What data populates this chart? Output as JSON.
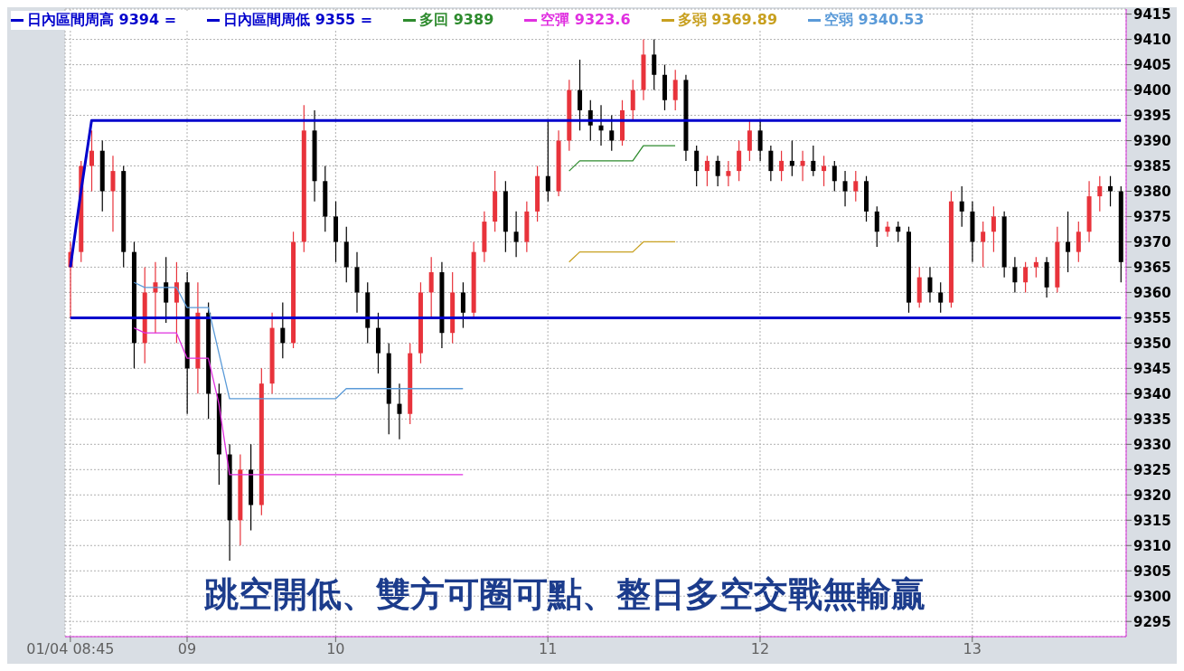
{
  "chart_data": {
    "type": "candlestick",
    "categories": [
      "01/04 08:45",
      null,
      null,
      null,
      null,
      null,
      null,
      null,
      null,
      null,
      null,
      "09",
      null,
      null,
      null,
      null,
      null,
      null,
      null,
      null,
      null,
      null,
      null,
      null,
      null,
      "10",
      null,
      null,
      null,
      null,
      null,
      null,
      null,
      null,
      null,
      null,
      null,
      null,
      null,
      null,
      null,
      null,
      null,
      null,
      null,
      "11",
      null,
      null,
      null,
      null,
      null,
      null,
      null,
      null,
      null,
      null,
      null,
      null,
      null,
      null,
      null,
      null,
      null,
      null,
      null,
      "12",
      null,
      null,
      null,
      null,
      null,
      null,
      null,
      null,
      null,
      null,
      null,
      null,
      null,
      null,
      null,
      null,
      null,
      null,
      null,
      "13",
      null,
      null,
      null,
      null,
      null,
      null,
      null,
      null,
      null,
      null,
      null,
      null,
      null,
      null
    ],
    "ohlc": [
      [
        9365,
        9370,
        9355,
        9368
      ],
      [
        9368,
        9386,
        9366,
        9385
      ],
      [
        9385,
        9392,
        9380,
        9388
      ],
      [
        9388,
        9390,
        9376,
        9380
      ],
      [
        9380,
        9387,
        9372,
        9384
      ],
      [
        9384,
        9385,
        9365,
        9368
      ],
      [
        9368,
        9370,
        9345,
        9350
      ],
      [
        9350,
        9365,
        9346,
        9360
      ],
      [
        9360,
        9366,
        9352,
        9362
      ],
      [
        9362,
        9367,
        9354,
        9358
      ],
      [
        9358,
        9366,
        9350,
        9362
      ],
      [
        9362,
        9364,
        9336,
        9345
      ],
      [
        9345,
        9362,
        9340,
        9356
      ],
      [
        9356,
        9358,
        9335,
        9340
      ],
      [
        9340,
        9342,
        9322,
        9328
      ],
      [
        9328,
        9330,
        9307,
        9315
      ],
      [
        9315,
        9328,
        9310,
        9325
      ],
      [
        9325,
        9330,
        9313,
        9318
      ],
      [
        9318,
        9345,
        9316,
        9342
      ],
      [
        9342,
        9356,
        9340,
        9353
      ],
      [
        9353,
        9358,
        9347,
        9350
      ],
      [
        9350,
        9372,
        9349,
        9370
      ],
      [
        9370,
        9397,
        9368,
        9392
      ],
      [
        9392,
        9396,
        9378,
        9382
      ],
      [
        9382,
        9385,
        9372,
        9375
      ],
      [
        9375,
        9378,
        9366,
        9370
      ],
      [
        9370,
        9373,
        9362,
        9365
      ],
      [
        9365,
        9368,
        9356,
        9360
      ],
      [
        9360,
        9362,
        9350,
        9353
      ],
      [
        9353,
        9356,
        9344,
        9348
      ],
      [
        9348,
        9350,
        9332,
        9338
      ],
      [
        9338,
        9342,
        9331,
        9336
      ],
      [
        9336,
        9350,
        9334,
        9348
      ],
      [
        9348,
        9362,
        9346,
        9360
      ],
      [
        9360,
        9367,
        9355,
        9364
      ],
      [
        9364,
        9366,
        9349,
        9352
      ],
      [
        9352,
        9364,
        9350,
        9360
      ],
      [
        9360,
        9362,
        9353,
        9356
      ],
      [
        9356,
        9370,
        9355,
        9368
      ],
      [
        9368,
        9376,
        9366,
        9374
      ],
      [
        9374,
        9384,
        9372,
        9380
      ],
      [
        9380,
        9382,
        9368,
        9372
      ],
      [
        9372,
        9376,
        9367,
        9370
      ],
      [
        9370,
        9378,
        9368,
        9376
      ],
      [
        9376,
        9385,
        9374,
        9383
      ],
      [
        9383,
        9394,
        9378,
        9380
      ],
      [
        9380,
        9392,
        9379,
        9390
      ],
      [
        9390,
        9402,
        9388,
        9400
      ],
      [
        9400,
        9406,
        9392,
        9396
      ],
      [
        9396,
        9398,
        9390,
        9393
      ],
      [
        9393,
        9397,
        9389,
        9392
      ],
      [
        9392,
        9395,
        9388,
        9390
      ],
      [
        9390,
        9398,
        9389,
        9396
      ],
      [
        9396,
        9402,
        9394,
        9400
      ],
      [
        9400,
        9410,
        9398,
        9407
      ],
      [
        9407,
        9410,
        9400,
        9403
      ],
      [
        9403,
        9405,
        9396,
        9398
      ],
      [
        9398,
        9404,
        9396,
        9402
      ],
      [
        9402,
        9403,
        9386,
        9388
      ],
      [
        9388,
        9389,
        9381,
        9384
      ],
      [
        9384,
        9387,
        9381,
        9386
      ],
      [
        9386,
        9387,
        9381,
        9383
      ],
      [
        9383,
        9386,
        9381,
        9384
      ],
      [
        9384,
        9390,
        9382,
        9388
      ],
      [
        9388,
        9394,
        9386,
        9392
      ],
      [
        9392,
        9394,
        9386,
        9388
      ],
      [
        9388,
        9389,
        9382,
        9384
      ],
      [
        9384,
        9388,
        9382,
        9386
      ],
      [
        9386,
        9390,
        9383,
        9385
      ],
      [
        9385,
        9388,
        9382,
        9386
      ],
      [
        9386,
        9389,
        9383,
        9384
      ],
      [
        9384,
        9387,
        9381,
        9385
      ],
      [
        9385,
        9386,
        9380,
        9382
      ],
      [
        9382,
        9384,
        9377,
        9380
      ],
      [
        9380,
        9384,
        9378,
        9382
      ],
      [
        9382,
        9383,
        9374,
        9376
      ],
      [
        9376,
        9377,
        9369,
        9372
      ],
      [
        9372,
        9374,
        9371,
        9373
      ],
      [
        9373,
        9374,
        9370,
        9372
      ],
      [
        9372,
        9373,
        9356,
        9358
      ],
      [
        9358,
        9365,
        9357,
        9363
      ],
      [
        9363,
        9365,
        9358,
        9360
      ],
      [
        9360,
        9362,
        9356,
        9358
      ],
      [
        9358,
        9380,
        9357,
        9378
      ],
      [
        9378,
        9381,
        9373,
        9376
      ],
      [
        9376,
        9378,
        9366,
        9370
      ],
      [
        9370,
        9374,
        9365,
        9372
      ],
      [
        9372,
        9377,
        9368,
        9375
      ],
      [
        9375,
        9376,
        9363,
        9365
      ],
      [
        9365,
        9367,
        9360,
        9362
      ],
      [
        9362,
        9366,
        9360,
        9365
      ],
      [
        9365,
        9367,
        9363,
        9366
      ],
      [
        9366,
        9367,
        9359,
        9361
      ],
      [
        9361,
        9373,
        9360,
        9370
      ],
      [
        9370,
        9376,
        9364,
        9368
      ],
      [
        9368,
        9374,
        9366,
        9372
      ],
      [
        9372,
        9382,
        9370,
        9379
      ],
      [
        9379,
        9383,
        9376,
        9381
      ],
      [
        9381,
        9383,
        9377,
        9380
      ],
      [
        9380,
        9381,
        9362,
        9366
      ]
    ],
    "colors": [
      "#e8333b",
      "#e8333b",
      "#e8333b",
      "#000000",
      "#e8333b",
      "#000000",
      "#000000",
      "#e8333b",
      "#e8333b",
      "#000000",
      "#e8333b",
      "#000000",
      "#e8333b",
      "#000000",
      "#000000",
      "#000000",
      "#e8333b",
      "#000000",
      "#e8333b",
      "#e8333b",
      "#000000",
      "#e8333b",
      "#e8333b",
      "#000000",
      "#000000",
      "#000000",
      "#000000",
      "#000000",
      "#000000",
      "#000000",
      "#000000",
      "#000000",
      "#e8333b",
      "#e8333b",
      "#e8333b",
      "#000000",
      "#e8333b",
      "#000000",
      "#e8333b",
      "#e8333b",
      "#e8333b",
      "#000000",
      "#000000",
      "#e8333b",
      "#e8333b",
      "#000000",
      "#e8333b",
      "#e8333b",
      "#000000",
      "#000000",
      "#000000",
      "#000000",
      "#e8333b",
      "#e8333b",
      "#e8333b",
      "#000000",
      "#000000",
      "#e8333b",
      "#000000",
      "#000000",
      "#e8333b",
      "#000000",
      "#e8333b",
      "#e8333b",
      "#e8333b",
      "#000000",
      "#000000",
      "#e8333b",
      "#000000",
      "#e8333b",
      "#000000",
      "#e8333b",
      "#000000",
      "#000000",
      "#e8333b",
      "#000000",
      "#000000",
      "#e8333b",
      "#000000",
      "#000000",
      "#e8333b",
      "#000000",
      "#000000",
      "#e8333b",
      "#000000",
      "#000000",
      "#e8333b",
      "#e8333b",
      "#000000",
      "#000000",
      "#e8333b",
      "#e8333b",
      "#000000",
      "#e8333b",
      "#000000",
      "#e8333b",
      "#e8333b",
      "#e8333b",
      "#000000",
      "#000000"
    ],
    "series": [
      {
        "type": "line",
        "name": "日內區間周高 9394 =",
        "color": "#0000cc",
        "values": [
          9365,
          9380,
          9394,
          9394,
          9394,
          9394,
          9394,
          9394,
          9394,
          9394,
          9394,
          9394,
          9394,
          9394,
          9394,
          9394,
          9394,
          9394,
          9394,
          9394,
          9394,
          9394,
          9394,
          9394,
          9394,
          9394,
          9394,
          9394,
          9394,
          9394,
          9394,
          9394,
          9394,
          9394,
          9394,
          9394,
          9394,
          9394,
          9394,
          9394,
          9394,
          9394,
          9394,
          9394,
          9394,
          9394,
          9394,
          9394,
          9394,
          9394,
          9394,
          9394,
          9394,
          9394,
          9394,
          9394,
          9394,
          9394,
          9394,
          9394,
          9394,
          9394,
          9394,
          9394,
          9394,
          9394,
          9394,
          9394,
          9394,
          9394,
          9394,
          9394,
          9394,
          9394,
          9394,
          9394,
          9394,
          9394,
          9394,
          9394,
          9394,
          9394,
          9394,
          9394,
          9394,
          9394,
          9394,
          9394,
          9394,
          9394,
          9394,
          9394,
          9394,
          9394,
          9394,
          9394,
          9394,
          9394,
          9394,
          9394
        ]
      },
      {
        "type": "line",
        "name": "日內區間周低 9355 =",
        "color": "#0000cc",
        "values": [
          9355,
          9355,
          9355,
          9355,
          9355,
          9355,
          9355,
          9355,
          9355,
          9355,
          9355,
          9355,
          9355,
          9355,
          9355,
          9355,
          9355,
          9355,
          9355,
          9355,
          9355,
          9355,
          9355,
          9355,
          9355,
          9355,
          9355,
          9355,
          9355,
          9355,
          9355,
          9355,
          9355,
          9355,
          9355,
          9355,
          9355,
          9355,
          9355,
          9355,
          9355,
          9355,
          9355,
          9355,
          9355,
          9355,
          9355,
          9355,
          9355,
          9355,
          9355,
          9355,
          9355,
          9355,
          9355,
          9355,
          9355,
          9355,
          9355,
          9355,
          9355,
          9355,
          9355,
          9355,
          9355,
          9355,
          9355,
          9355,
          9355,
          9355,
          9355,
          9355,
          9355,
          9355,
          9355,
          9355,
          9355,
          9355,
          9355,
          9355,
          9355,
          9355,
          9355,
          9355,
          9355,
          9355,
          9355,
          9355,
          9355,
          9355,
          9355,
          9355,
          9355,
          9355,
          9355,
          9355,
          9355,
          9355,
          9355,
          9355
        ]
      },
      {
        "type": "line",
        "name": "多回 9389",
        "color": "#2e8b2e",
        "values": [
          null,
          null,
          null,
          null,
          null,
          null,
          null,
          null,
          null,
          null,
          null,
          null,
          null,
          null,
          null,
          null,
          null,
          null,
          null,
          null,
          null,
          null,
          null,
          null,
          null,
          null,
          null,
          null,
          null,
          null,
          null,
          null,
          null,
          null,
          null,
          null,
          null,
          null,
          null,
          null,
          null,
          null,
          null,
          null,
          null,
          null,
          null,
          9384,
          9386,
          9386,
          9386,
          9386,
          9386,
          9386,
          9389,
          9389,
          9389,
          9389,
          null,
          null,
          null,
          null,
          null,
          null,
          null,
          null,
          null,
          null,
          null,
          null,
          null,
          null,
          null,
          null,
          null,
          null,
          null,
          null,
          null,
          null,
          null,
          null,
          null,
          null,
          null,
          null,
          null,
          null,
          null,
          null,
          null,
          null,
          null,
          null,
          null,
          null,
          null,
          null,
          null,
          null
        ]
      },
      {
        "type": "line",
        "name": "空彈 9323.6",
        "color": "#e030e0",
        "values": [
          null,
          null,
          null,
          null,
          null,
          null,
          9353,
          9352,
          9352,
          9352,
          9352,
          9347,
          9347,
          9347,
          9338,
          9324,
          9324,
          9324,
          9324,
          9324,
          9324,
          9324,
          9324,
          9324,
          9324,
          9324,
          9324,
          9324,
          9324,
          9324,
          9324,
          9324,
          9324,
          9324,
          9324,
          9324,
          9324,
          9324,
          null,
          null,
          null,
          null,
          null,
          null,
          null,
          null,
          null,
          null,
          null,
          null,
          null,
          null,
          null,
          null,
          null,
          null,
          null,
          null,
          null,
          null,
          null,
          null,
          null,
          null,
          null,
          null,
          null,
          null,
          null,
          null,
          null,
          null,
          null,
          null,
          null,
          null,
          null,
          null,
          null,
          null,
          null,
          null,
          null,
          null,
          null,
          null,
          null,
          null,
          null,
          null,
          null,
          null,
          null,
          null,
          null,
          null,
          null,
          null,
          null,
          null
        ]
      },
      {
        "type": "line",
        "name": "多弱 9369.89",
        "color": "#c8a020",
        "values": [
          null,
          null,
          null,
          null,
          null,
          null,
          null,
          null,
          null,
          null,
          null,
          null,
          null,
          null,
          null,
          null,
          null,
          null,
          null,
          null,
          null,
          null,
          null,
          null,
          null,
          null,
          null,
          null,
          null,
          null,
          null,
          null,
          null,
          null,
          null,
          null,
          null,
          null,
          null,
          null,
          null,
          null,
          null,
          null,
          null,
          null,
          null,
          9366,
          9368,
          9368,
          9368,
          9368,
          9368,
          9368,
          9370,
          9370,
          9370,
          9370,
          null,
          null,
          null,
          null,
          null,
          null,
          null,
          null,
          null,
          null,
          null,
          null,
          null,
          null,
          null,
          null,
          null,
          null,
          null,
          null,
          null,
          null,
          null,
          null,
          null,
          null,
          null,
          null,
          null,
          null,
          null,
          null,
          null,
          null,
          null,
          null,
          null,
          null,
          null,
          null,
          null,
          null
        ]
      },
      {
        "type": "line",
        "name": "空弱 9340.53",
        "color": "#5a9ad8",
        "values": [
          null,
          null,
          null,
          null,
          null,
          null,
          9362,
          9361,
          9361,
          9361,
          9361,
          9357,
          9357,
          9357,
          9348,
          9339,
          9339,
          9339,
          9339,
          9339,
          9339,
          9339,
          9339,
          9339,
          9339,
          9339,
          9341,
          9341,
          9341,
          9341,
          9341,
          9341,
          9341,
          9341,
          9341,
          9341,
          9341,
          9341,
          null,
          null,
          null,
          null,
          null,
          null,
          null,
          null,
          null,
          null,
          null,
          null,
          null,
          null,
          null,
          null,
          null,
          null,
          null,
          null,
          null,
          null,
          null,
          null,
          null,
          null,
          null,
          null,
          null,
          null,
          null,
          null,
          null,
          null,
          null,
          null,
          null,
          null,
          null,
          null,
          null,
          null,
          null,
          null,
          null,
          null,
          null,
          null,
          null,
          null,
          null,
          null,
          null,
          null,
          null,
          null,
          null,
          null,
          null,
          null,
          null,
          null
        ]
      }
    ],
    "ylim": [
      9292,
      9416
    ],
    "yticks": [
      9295,
      9300,
      9305,
      9310,
      9315,
      9320,
      9325,
      9330,
      9335,
      9340,
      9345,
      9350,
      9355,
      9360,
      9365,
      9370,
      9375,
      9380,
      9385,
      9390,
      9395,
      9400,
      9405,
      9410,
      9415
    ],
    "grid": true,
    "legend": "top left",
    "marker": "none",
    "annotations": [
      "跳空開低、雙方可圈可點、整日多空交戰無輸贏"
    ]
  }
}
